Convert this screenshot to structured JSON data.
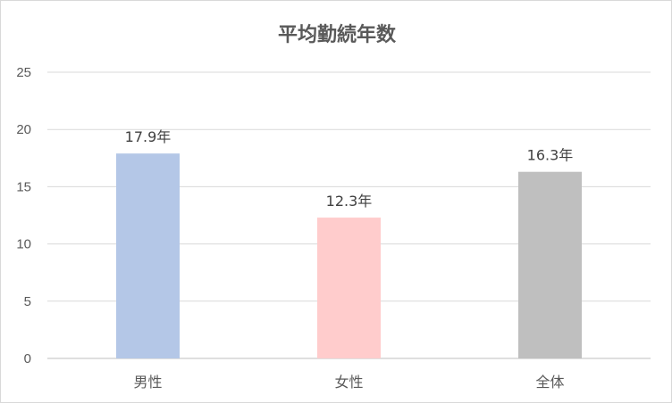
{
  "chart_data": {
    "type": "bar",
    "title": "平均勤続年数",
    "categories": [
      "男性",
      "女性",
      "全体"
    ],
    "values": [
      17.9,
      12.3,
      16.3
    ],
    "data_labels": [
      "17.9年",
      "12.3年",
      "16.3年"
    ],
    "colors": [
      "#b4c7e7",
      "#ffcccc",
      "#bfbfbf"
    ],
    "ylim": [
      0,
      25
    ],
    "yticks": [
      0,
      5,
      10,
      15,
      20,
      25
    ],
    "grid": true,
    "legend": "none"
  }
}
